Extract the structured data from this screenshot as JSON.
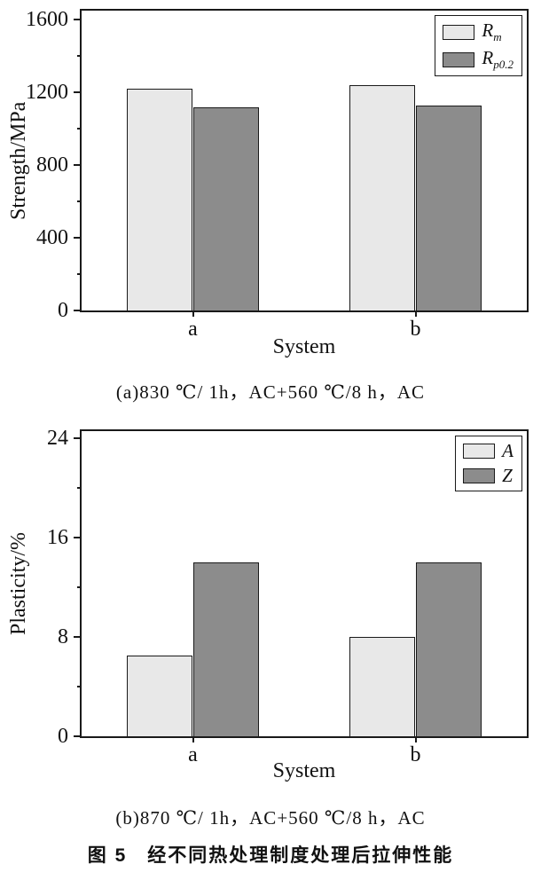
{
  "figure": {
    "caption": "图 5　经不同热处理制度处理后拉伸性能"
  },
  "chart_data": [
    {
      "type": "bar",
      "title": "",
      "xlabel": "System",
      "ylabel": "Strength/MPa",
      "ylim": [
        0,
        1650
      ],
      "yticks": [
        0,
        400,
        800,
        1200,
        1600
      ],
      "categories": [
        "a",
        "b"
      ],
      "series": [
        {
          "name": "Rm",
          "label_main": "R",
          "label_sub": "m",
          "color": "#e8e8e8",
          "values": [
            1220,
            1240
          ]
        },
        {
          "name": "Rp02",
          "label_main": "R",
          "label_sub": "p0.2",
          "color": "#8c8c8c",
          "values": [
            1120,
            1130
          ]
        }
      ],
      "grid": false,
      "legend_position": "top-right",
      "caption": "(a)830 ℃/ 1h，AC+560 ℃/8 h，AC"
    },
    {
      "type": "bar",
      "title": "",
      "xlabel": "System",
      "ylabel": "Plasticity/%",
      "ylim": [
        0,
        24.6
      ],
      "yticks": [
        0,
        8,
        16,
        24
      ],
      "categories": [
        "a",
        "b"
      ],
      "series": [
        {
          "name": "A",
          "label_main": "A",
          "label_sub": "",
          "color": "#e8e8e8",
          "values": [
            6.5,
            8
          ]
        },
        {
          "name": "Z",
          "label_main": "Z",
          "label_sub": "",
          "color": "#8c8c8c",
          "values": [
            14,
            14
          ]
        }
      ],
      "grid": false,
      "legend_position": "top-right",
      "caption": "(b)870 ℃/ 1h，AC+560 ℃/8 h，AC"
    }
  ]
}
